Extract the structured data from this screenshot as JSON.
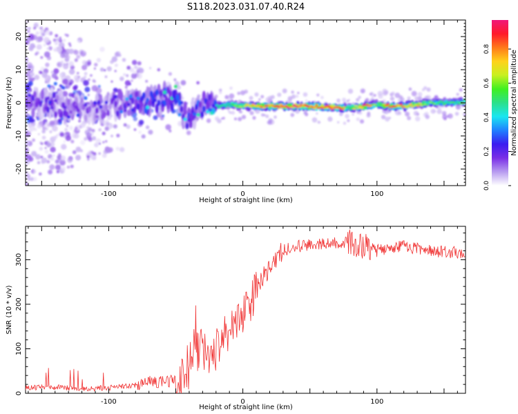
{
  "title": "S118.2023.031.07.40.R24",
  "chart_data": [
    {
      "type": "heatmap",
      "xlabel": "Height of straight line (km)",
      "ylabel": "Frequency (Hz)",
      "xlim": [
        -162,
        166
      ],
      "ylim": [
        -25,
        25
      ],
      "xticks": [
        -100,
        0,
        100
      ],
      "yticks": [
        -20,
        -10,
        0,
        10,
        20
      ],
      "colorbar": {
        "label": "Normalized spectral amplitude",
        "range": [
          0,
          0.97
        ],
        "ticks": [
          0.0,
          0.2,
          0.4,
          0.6,
          0.8
        ],
        "colormap": [
          "#ffffff",
          "#b89cf0",
          "#7a2ee6",
          "#3b1cf0",
          "#1f7fff",
          "#19e6f0",
          "#2ce08a",
          "#3ff020",
          "#c8f020",
          "#ffd21a",
          "#ff7a1a",
          "#ff1a2a",
          "#f0187a"
        ]
      },
      "ridge": {
        "x": [
          -160,
          -140,
          -120,
          -100,
          -80,
          -60,
          -50,
          -45,
          -40,
          -30,
          -20,
          -10,
          0,
          20,
          40,
          60,
          70,
          80,
          90,
          100,
          110,
          120,
          130,
          140,
          150,
          160,
          166
        ],
        "frequency": [
          0.0,
          -0.5,
          -2.5,
          -1.0,
          -0.5,
          1.5,
          2.0,
          -3.0,
          -4.5,
          -0.5,
          -1.0,
          -0.5,
          -1.0,
          -1.0,
          -1.0,
          -1.2,
          -1.5,
          -1.5,
          -1.2,
          -0.5,
          -1.0,
          -1.0,
          -0.5,
          0.0,
          0.0,
          0.0,
          0.5
        ],
        "amplitude": [
          0.25,
          0.25,
          0.22,
          0.2,
          0.35,
          0.4,
          0.45,
          0.35,
          0.35,
          0.4,
          0.45,
          0.5,
          0.65,
          0.85,
          0.9,
          0.8,
          0.95,
          0.5,
          0.9,
          0.55,
          0.85,
          0.75,
          0.7,
          0.55,
          0.5,
          0.5,
          0.55
        ]
      }
    },
    {
      "type": "line",
      "xlabel": "Height of straight line (km)",
      "ylabel": "SNR (10 * v/v)",
      "xlim": [
        -162,
        166
      ],
      "ylim": [
        0,
        375
      ],
      "xticks": [
        -100,
        0,
        100
      ],
      "yticks": [
        0,
        100,
        200,
        300
      ],
      "color": "#f03030",
      "trend": {
        "x": [
          -162,
          -140,
          -120,
          -100,
          -80,
          -70,
          -60,
          -50,
          -40,
          -35,
          -30,
          -25,
          -20,
          -10,
          0,
          10,
          20,
          30,
          40,
          60,
          80,
          100,
          120,
          140,
          166
        ],
        "y": [
          12,
          14,
          10,
          12,
          18,
          25,
          25,
          30,
          60,
          90,
          95,
          85,
          100,
          145,
          175,
          230,
          285,
          320,
          330,
          335,
          340,
          320,
          330,
          320,
          315
        ]
      }
    }
  ]
}
